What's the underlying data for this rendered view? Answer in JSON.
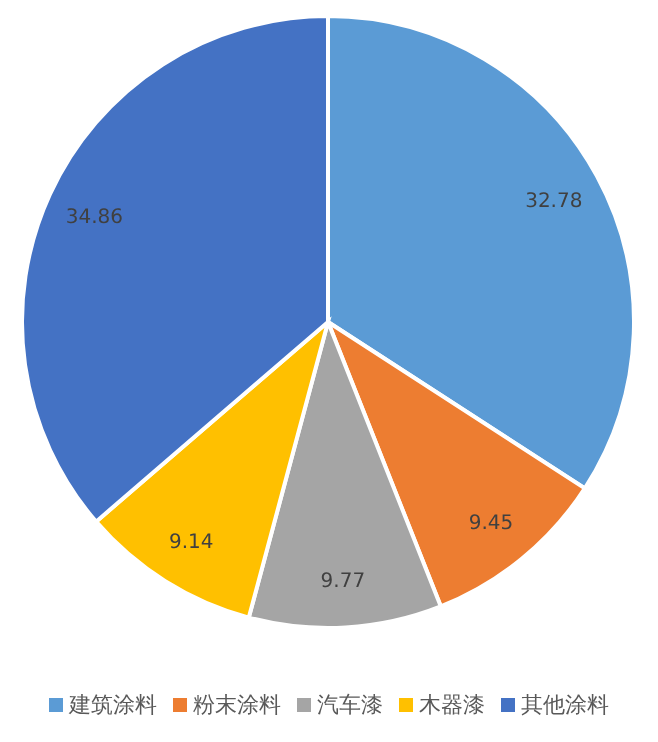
{
  "chart_data": {
    "type": "pie",
    "categories": [
      "建筑涂料",
      "粉末涂料",
      "汽车漆",
      "木器漆",
      "其他涂料"
    ],
    "values": [
      32.78,
      9.45,
      9.77,
      9.14,
      34.86
    ],
    "colors": [
      "#5b9bd5",
      "#ed7d31",
      "#a5a5a5",
      "#ffc000",
      "#4472c4"
    ],
    "data_labels": true,
    "legend": "bottom"
  }
}
